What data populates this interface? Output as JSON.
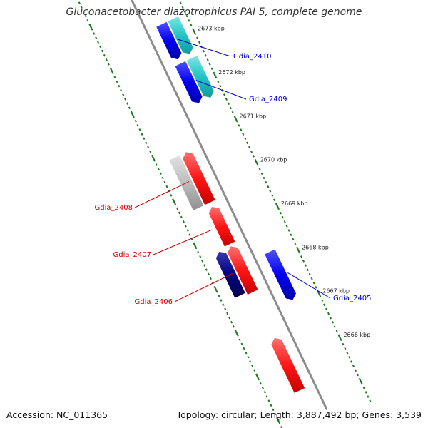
{
  "title": "Gluconacetobacter diazotrophicus PAI 5, complete genome",
  "footer": {
    "accession": "Accession: NC_011365",
    "topology": "Topology: circular; Length: 3,887,492 bp; Genes: 3,539"
  },
  "colors": {
    "backbone": "#8c8c8c",
    "ring_dots": "#1f7a1f",
    "forward_gene": "#0000ff",
    "forward_gene_alt": "#22c5c5",
    "reverse_gene": "#ff1a1a",
    "reverse_gene_dark": "#000080",
    "reverse_gene_grey": "#bdbdbd",
    "label_forward": "#0000cc",
    "label_reverse": "#cc0000"
  },
  "chart_data": {
    "type": "genome-map",
    "unit": "kbp",
    "strand_view": "linear-zoom",
    "tick_labels": [
      "2673 kbp",
      "2672 kbp",
      "2671 kbp",
      "2670 kbp",
      "2669 kbp",
      "2668 kbp",
      "2667 kbp",
      "2666 kbp"
    ],
    "ticks_kbp": [
      2673,
      2672,
      2671,
      2670,
      2669,
      2668,
      2667,
      2666
    ],
    "genes": [
      {
        "name": "Gdia_2410",
        "strand": "forward",
        "labeled": true,
        "start_kbp": 2672.55,
        "end_kbp": 2673.35,
        "track": "outer-1",
        "color": "forward_gene"
      },
      {
        "name": "Gdia_2409",
        "strand": "forward",
        "labeled": true,
        "start_kbp": 2671.55,
        "end_kbp": 2672.45,
        "track": "outer-1",
        "color": "forward_gene"
      },
      {
        "name": "Gdia_2405",
        "strand": "forward",
        "labeled": true,
        "start_kbp": 2667.05,
        "end_kbp": 2668.15,
        "track": "outer-1",
        "color": "forward_gene"
      },
      {
        "name": "Gdia_2408",
        "strand": "reverse",
        "labeled": true,
        "start_kbp": 2669.6,
        "end_kbp": 2670.75,
        "track": "inner-1",
        "color": "reverse_gene"
      },
      {
        "name": "Gdia_2407",
        "strand": "reverse",
        "labeled": true,
        "start_kbp": 2668.65,
        "end_kbp": 2669.5,
        "track": "inner-1",
        "color": "reverse_gene"
      },
      {
        "name": "Gdia_2406",
        "strand": "reverse",
        "labeled": true,
        "start_kbp": 2667.55,
        "end_kbp": 2668.6,
        "track": "inner-1",
        "color": "reverse_gene"
      },
      {
        "name": "",
        "strand": "forward",
        "labeled": false,
        "start_kbp": 2672.55,
        "end_kbp": 2673.35,
        "track": "outer-2",
        "color": "forward_gene_alt"
      },
      {
        "name": "",
        "strand": "forward",
        "labeled": false,
        "start_kbp": 2671.55,
        "end_kbp": 2672.45,
        "track": "outer-2",
        "color": "forward_gene_alt"
      },
      {
        "name": "",
        "strand": "reverse",
        "labeled": false,
        "start_kbp": 2669.6,
        "end_kbp": 2670.75,
        "track": "inner-2",
        "color": "reverse_gene_grey"
      },
      {
        "name": "",
        "strand": "reverse",
        "labeled": false,
        "start_kbp": 2667.6,
        "end_kbp": 2668.6,
        "track": "inner-2",
        "color": "reverse_gene_dark"
      },
      {
        "name": "",
        "strand": "reverse",
        "labeled": false,
        "start_kbp": 2665.3,
        "end_kbp": 2666.5,
        "track": "inner-1",
        "color": "reverse_gene"
      }
    ]
  }
}
